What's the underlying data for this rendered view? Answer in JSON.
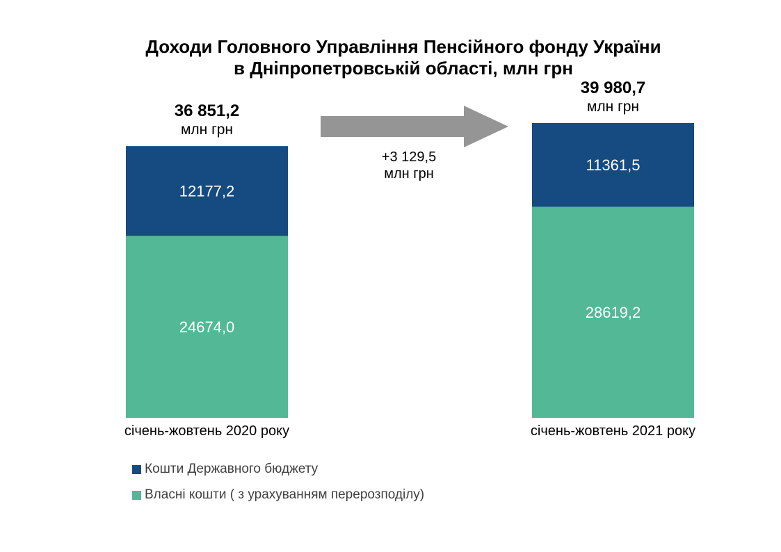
{
  "chart_data": {
    "type": "bar",
    "stacked": true,
    "title": [
      "Доходи Головного Управління Пенсійного фонду України",
      "в Дніпропетровській області, млн грн"
    ],
    "categories": [
      "січень-жовтень 2020 року",
      "січень-жовтень 2021 року"
    ],
    "series": [
      {
        "name": "Власні кошти ( з урахуванням перерозподілу)",
        "values": [
          24674.0,
          28619.2
        ],
        "labels": [
          "24674,0",
          "28619,2"
        ],
        "color": "#52b896"
      },
      {
        "name": "Кошти Державного бюджету",
        "values": [
          12177.2,
          11361.5
        ],
        "labels": [
          "12177,2",
          "11361,5"
        ],
        "color": "#154b81"
      }
    ],
    "totals": [
      "36 851,2",
      "39 980,7"
    ],
    "total_unit": "млн грн",
    "difference": {
      "value": "+3 129,5",
      "unit": "млн грн"
    },
    "ylim": [
      0,
      42000
    ],
    "arrow_color": "#959595",
    "grid": false,
    "legend_position": "bottom-left"
  }
}
